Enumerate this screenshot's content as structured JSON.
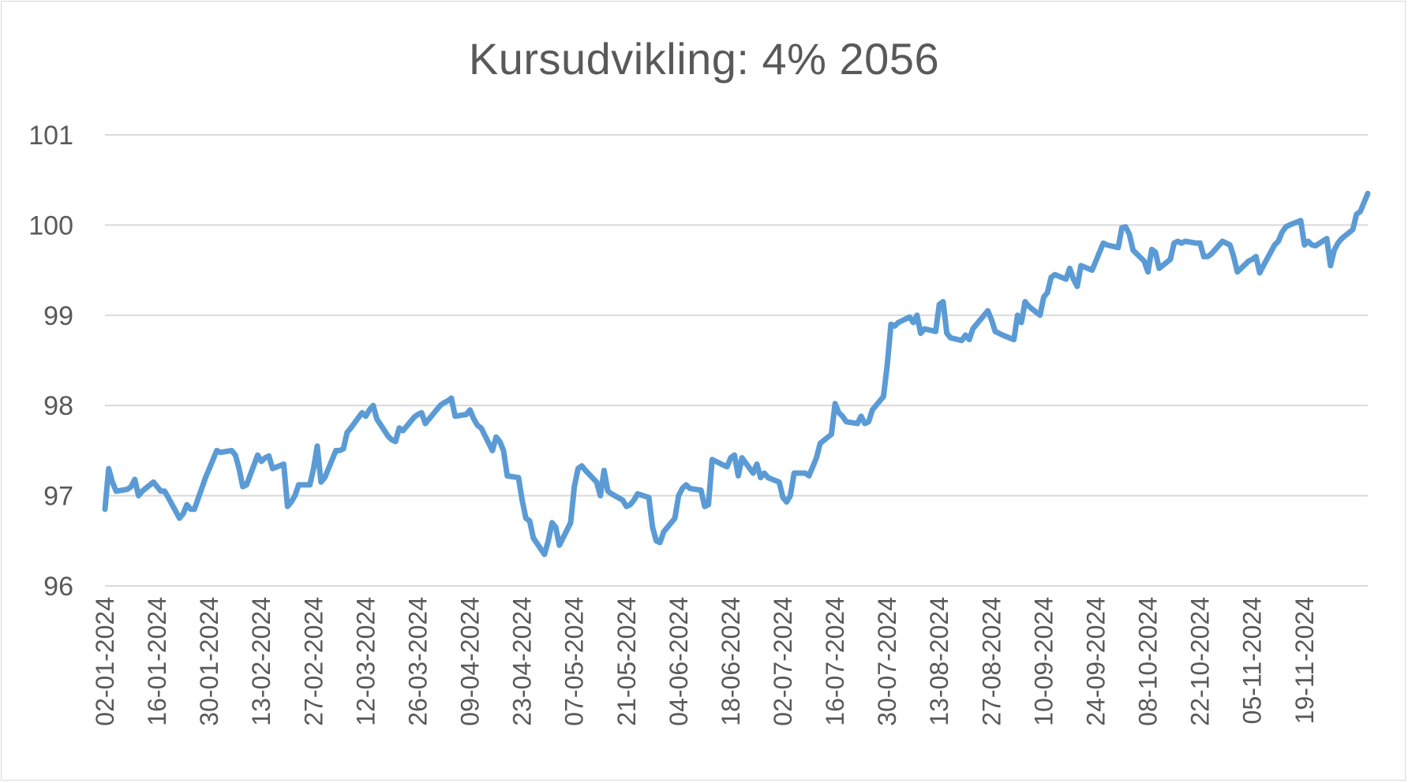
{
  "chart_data": {
    "type": "line",
    "title": "Kursudvikling: 4% 2056",
    "xlabel": "",
    "ylabel": "",
    "ylim": [
      96,
      101
    ],
    "yticks": [
      96,
      97,
      98,
      99,
      100,
      101
    ],
    "grid": "horizontal",
    "legend": "none",
    "x_tick_labels": [
      "02-01-2024",
      "16-01-2024",
      "30-01-2024",
      "13-02-2024",
      "27-02-2024",
      "12-03-2024",
      "26-03-2024",
      "09-04-2024",
      "23-04-2024",
      "07-05-2024",
      "21-05-2024",
      "04-06-2024",
      "18-06-2024",
      "02-07-2024",
      "16-07-2024",
      "30-07-2024",
      "13-08-2024",
      "27-08-2024",
      "10-09-2024",
      "24-09-2024",
      "08-10-2024",
      "22-10-2024",
      "05-11-2024",
      "19-11-2024"
    ],
    "x_start": "2024-01-02",
    "x_end": "2024-12-06",
    "series": [
      {
        "color": "#5B9BD5",
        "points": [
          [
            "2024-01-02",
            96.85
          ],
          [
            "2024-01-03",
            97.3
          ],
          [
            "2024-01-04",
            97.15
          ],
          [
            "2024-01-05",
            97.05
          ],
          [
            "2024-01-08",
            97.07
          ],
          [
            "2024-01-09",
            97.1
          ],
          [
            "2024-01-10",
            97.18
          ],
          [
            "2024-01-11",
            97.0
          ],
          [
            "2024-01-12",
            97.05
          ],
          [
            "2024-01-15",
            97.15
          ],
          [
            "2024-01-16",
            97.1
          ],
          [
            "2024-01-17",
            97.05
          ],
          [
            "2024-01-18",
            97.05
          ],
          [
            "2024-01-19",
            96.98
          ],
          [
            "2024-01-22",
            96.75
          ],
          [
            "2024-01-23",
            96.8
          ],
          [
            "2024-01-24",
            96.9
          ],
          [
            "2024-01-25",
            96.85
          ],
          [
            "2024-01-26",
            96.85
          ],
          [
            "2024-01-29",
            97.2
          ],
          [
            "2024-01-30",
            97.3
          ],
          [
            "2024-01-31",
            97.4
          ],
          [
            "2024-02-01",
            97.5
          ],
          [
            "2024-02-02",
            97.48
          ],
          [
            "2024-02-05",
            97.5
          ],
          [
            "2024-02-06",
            97.45
          ],
          [
            "2024-02-07",
            97.3
          ],
          [
            "2024-02-08",
            97.1
          ],
          [
            "2024-02-09",
            97.12
          ],
          [
            "2024-02-12",
            97.45
          ],
          [
            "2024-02-13",
            97.38
          ],
          [
            "2024-02-14",
            97.42
          ],
          [
            "2024-02-15",
            97.44
          ],
          [
            "2024-02-16",
            97.3
          ],
          [
            "2024-02-19",
            97.35
          ],
          [
            "2024-02-20",
            96.88
          ],
          [
            "2024-02-21",
            96.93
          ],
          [
            "2024-02-22",
            97.0
          ],
          [
            "2024-02-23",
            97.12
          ],
          [
            "2024-02-26",
            97.12
          ],
          [
            "2024-02-27",
            97.3
          ],
          [
            "2024-02-28",
            97.55
          ],
          [
            "2024-02-29",
            97.15
          ],
          [
            "2024-03-01",
            97.2
          ],
          [
            "2024-03-04",
            97.5
          ],
          [
            "2024-03-05",
            97.5
          ],
          [
            "2024-03-06",
            97.52
          ],
          [
            "2024-03-07",
            97.7
          ],
          [
            "2024-03-08",
            97.75
          ],
          [
            "2024-03-11",
            97.92
          ],
          [
            "2024-03-12",
            97.88
          ],
          [
            "2024-03-13",
            97.95
          ],
          [
            "2024-03-14",
            98.0
          ],
          [
            "2024-03-15",
            97.85
          ],
          [
            "2024-03-18",
            97.66
          ],
          [
            "2024-03-19",
            97.62
          ],
          [
            "2024-03-20",
            97.6
          ],
          [
            "2024-03-21",
            97.75
          ],
          [
            "2024-03-22",
            97.72
          ],
          [
            "2024-03-25",
            97.87
          ],
          [
            "2024-03-26",
            97.9
          ],
          [
            "2024-03-27",
            97.92
          ],
          [
            "2024-03-28",
            97.8
          ],
          [
            "2024-04-01",
            98.0
          ],
          [
            "2024-04-02",
            98.03
          ],
          [
            "2024-04-03",
            98.05
          ],
          [
            "2024-04-04",
            98.08
          ],
          [
            "2024-04-05",
            97.88
          ],
          [
            "2024-04-08",
            97.9
          ],
          [
            "2024-04-09",
            97.95
          ],
          [
            "2024-04-10",
            97.85
          ],
          [
            "2024-04-11",
            97.78
          ],
          [
            "2024-04-12",
            97.75
          ],
          [
            "2024-04-15",
            97.5
          ],
          [
            "2024-04-16",
            97.65
          ],
          [
            "2024-04-17",
            97.6
          ],
          [
            "2024-04-18",
            97.5
          ],
          [
            "2024-04-19",
            97.22
          ],
          [
            "2024-04-22",
            97.2
          ],
          [
            "2024-04-23",
            96.95
          ],
          [
            "2024-04-24",
            96.75
          ],
          [
            "2024-04-25",
            96.72
          ],
          [
            "2024-04-26",
            96.53
          ],
          [
            "2024-04-29",
            96.35
          ],
          [
            "2024-04-30",
            96.5
          ],
          [
            "2024-05-01",
            96.7
          ],
          [
            "2024-05-02",
            96.65
          ],
          [
            "2024-05-03",
            96.45
          ],
          [
            "2024-05-06",
            96.7
          ],
          [
            "2024-05-07",
            97.1
          ],
          [
            "2024-05-08",
            97.3
          ],
          [
            "2024-05-09",
            97.33
          ],
          [
            "2024-05-10",
            97.28
          ],
          [
            "2024-05-13",
            97.15
          ],
          [
            "2024-05-14",
            97.0
          ],
          [
            "2024-05-15",
            97.28
          ],
          [
            "2024-05-16",
            97.05
          ],
          [
            "2024-05-17",
            97.02
          ],
          [
            "2024-05-20",
            96.95
          ],
          [
            "2024-05-21",
            96.88
          ],
          [
            "2024-05-22",
            96.9
          ],
          [
            "2024-05-23",
            96.95
          ],
          [
            "2024-05-24",
            97.02
          ],
          [
            "2024-05-27",
            96.98
          ],
          [
            "2024-05-28",
            96.65
          ],
          [
            "2024-05-29",
            96.5
          ],
          [
            "2024-05-30",
            96.48
          ],
          [
            "2024-05-31",
            96.6
          ],
          [
            "2024-06-03",
            96.75
          ],
          [
            "2024-06-04",
            97.0
          ],
          [
            "2024-06-05",
            97.08
          ],
          [
            "2024-06-06",
            97.12
          ],
          [
            "2024-06-07",
            97.08
          ],
          [
            "2024-06-10",
            97.06
          ],
          [
            "2024-06-11",
            96.88
          ],
          [
            "2024-06-12",
            96.9
          ],
          [
            "2024-06-13",
            97.4
          ],
          [
            "2024-06-14",
            97.38
          ],
          [
            "2024-06-17",
            97.32
          ],
          [
            "2024-06-18",
            97.42
          ],
          [
            "2024-06-19",
            97.45
          ],
          [
            "2024-06-20",
            97.22
          ],
          [
            "2024-06-21",
            97.42
          ],
          [
            "2024-06-24",
            97.25
          ],
          [
            "2024-06-25",
            97.35
          ],
          [
            "2024-06-26",
            97.2
          ],
          [
            "2024-06-27",
            97.25
          ],
          [
            "2024-06-28",
            97.2
          ],
          [
            "2024-07-01",
            97.15
          ],
          [
            "2024-07-02",
            96.98
          ],
          [
            "2024-07-03",
            96.93
          ],
          [
            "2024-07-04",
            97.0
          ],
          [
            "2024-07-05",
            97.25
          ],
          [
            "2024-07-08",
            97.25
          ],
          [
            "2024-07-09",
            97.22
          ],
          [
            "2024-07-10",
            97.32
          ],
          [
            "2024-07-11",
            97.42
          ],
          [
            "2024-07-12",
            97.58
          ],
          [
            "2024-07-15",
            97.68
          ],
          [
            "2024-07-16",
            98.02
          ],
          [
            "2024-07-17",
            97.92
          ],
          [
            "2024-07-18",
            97.88
          ],
          [
            "2024-07-19",
            97.82
          ],
          [
            "2024-07-22",
            97.8
          ],
          [
            "2024-07-23",
            97.88
          ],
          [
            "2024-07-24",
            97.8
          ],
          [
            "2024-07-25",
            97.82
          ],
          [
            "2024-07-26",
            97.95
          ],
          [
            "2024-07-29",
            98.1
          ],
          [
            "2024-07-30",
            98.45
          ],
          [
            "2024-07-31",
            98.9
          ],
          [
            "2024-08-01",
            98.88
          ],
          [
            "2024-08-02",
            98.92
          ],
          [
            "2024-08-05",
            98.98
          ],
          [
            "2024-08-06",
            98.92
          ],
          [
            "2024-08-07",
            99.0
          ],
          [
            "2024-08-08",
            98.8
          ],
          [
            "2024-08-09",
            98.85
          ],
          [
            "2024-08-12",
            98.82
          ],
          [
            "2024-08-13",
            99.12
          ],
          [
            "2024-08-14",
            99.15
          ],
          [
            "2024-08-15",
            98.8
          ],
          [
            "2024-08-16",
            98.75
          ],
          [
            "2024-08-19",
            98.72
          ],
          [
            "2024-08-20",
            98.78
          ],
          [
            "2024-08-21",
            98.73
          ],
          [
            "2024-08-22",
            98.85
          ],
          [
            "2024-08-23",
            98.9
          ],
          [
            "2024-08-26",
            99.05
          ],
          [
            "2024-08-27",
            98.95
          ],
          [
            "2024-08-28",
            98.82
          ],
          [
            "2024-08-29",
            98.8
          ],
          [
            "2024-08-30",
            98.78
          ],
          [
            "2024-09-02",
            98.73
          ],
          [
            "2024-09-03",
            99.0
          ],
          [
            "2024-09-04",
            98.92
          ],
          [
            "2024-09-05",
            99.15
          ],
          [
            "2024-09-06",
            99.1
          ],
          [
            "2024-09-09",
            99.0
          ],
          [
            "2024-09-10",
            99.2
          ],
          [
            "2024-09-11",
            99.25
          ],
          [
            "2024-09-12",
            99.42
          ],
          [
            "2024-09-13",
            99.45
          ],
          [
            "2024-09-16",
            99.4
          ],
          [
            "2024-09-17",
            99.52
          ],
          [
            "2024-09-18",
            99.4
          ],
          [
            "2024-09-19",
            99.32
          ],
          [
            "2024-09-20",
            99.55
          ],
          [
            "2024-09-23",
            99.5
          ],
          [
            "2024-09-24",
            99.6
          ],
          [
            "2024-09-25",
            99.7
          ],
          [
            "2024-09-26",
            99.8
          ],
          [
            "2024-09-27",
            99.78
          ],
          [
            "2024-09-30",
            99.75
          ],
          [
            "2024-10-01",
            99.97
          ],
          [
            "2024-10-02",
            99.98
          ],
          [
            "2024-10-03",
            99.9
          ],
          [
            "2024-10-04",
            99.72
          ],
          [
            "2024-10-07",
            99.6
          ],
          [
            "2024-10-08",
            99.48
          ],
          [
            "2024-10-09",
            99.73
          ],
          [
            "2024-10-10",
            99.7
          ],
          [
            "2024-10-11",
            99.52
          ],
          [
            "2024-10-14",
            99.62
          ],
          [
            "2024-10-15",
            99.8
          ],
          [
            "2024-10-16",
            99.82
          ],
          [
            "2024-10-17",
            99.8
          ],
          [
            "2024-10-18",
            99.82
          ],
          [
            "2024-10-21",
            99.8
          ],
          [
            "2024-10-22",
            99.8
          ],
          [
            "2024-10-23",
            99.65
          ],
          [
            "2024-10-24",
            99.65
          ],
          [
            "2024-10-25",
            99.68
          ],
          [
            "2024-10-28",
            99.82
          ],
          [
            "2024-10-29",
            99.8
          ],
          [
            "2024-10-30",
            99.78
          ],
          [
            "2024-10-31",
            99.65
          ],
          [
            "2024-11-01",
            99.48
          ],
          [
            "2024-11-04",
            99.6
          ],
          [
            "2024-11-05",
            99.62
          ],
          [
            "2024-11-06",
            99.65
          ],
          [
            "2024-11-07",
            99.47
          ],
          [
            "2024-11-08",
            99.55
          ],
          [
            "2024-11-11",
            99.78
          ],
          [
            "2024-11-12",
            99.82
          ],
          [
            "2024-11-13",
            99.92
          ],
          [
            "2024-11-14",
            99.98
          ],
          [
            "2024-11-15",
            100.0
          ],
          [
            "2024-11-18",
            100.05
          ],
          [
            "2024-11-19",
            99.78
          ],
          [
            "2024-11-20",
            99.82
          ],
          [
            "2024-11-21",
            99.78
          ],
          [
            "2024-11-22",
            99.77
          ],
          [
            "2024-11-25",
            99.85
          ],
          [
            "2024-11-26",
            99.55
          ],
          [
            "2024-11-27",
            99.72
          ],
          [
            "2024-11-28",
            99.8
          ],
          [
            "2024-11-29",
            99.85
          ],
          [
            "2024-12-02",
            99.95
          ],
          [
            "2024-12-03",
            100.12
          ],
          [
            "2024-12-04",
            100.15
          ],
          [
            "2024-12-05",
            100.25
          ],
          [
            "2024-12-06",
            100.35
          ]
        ]
      }
    ]
  }
}
